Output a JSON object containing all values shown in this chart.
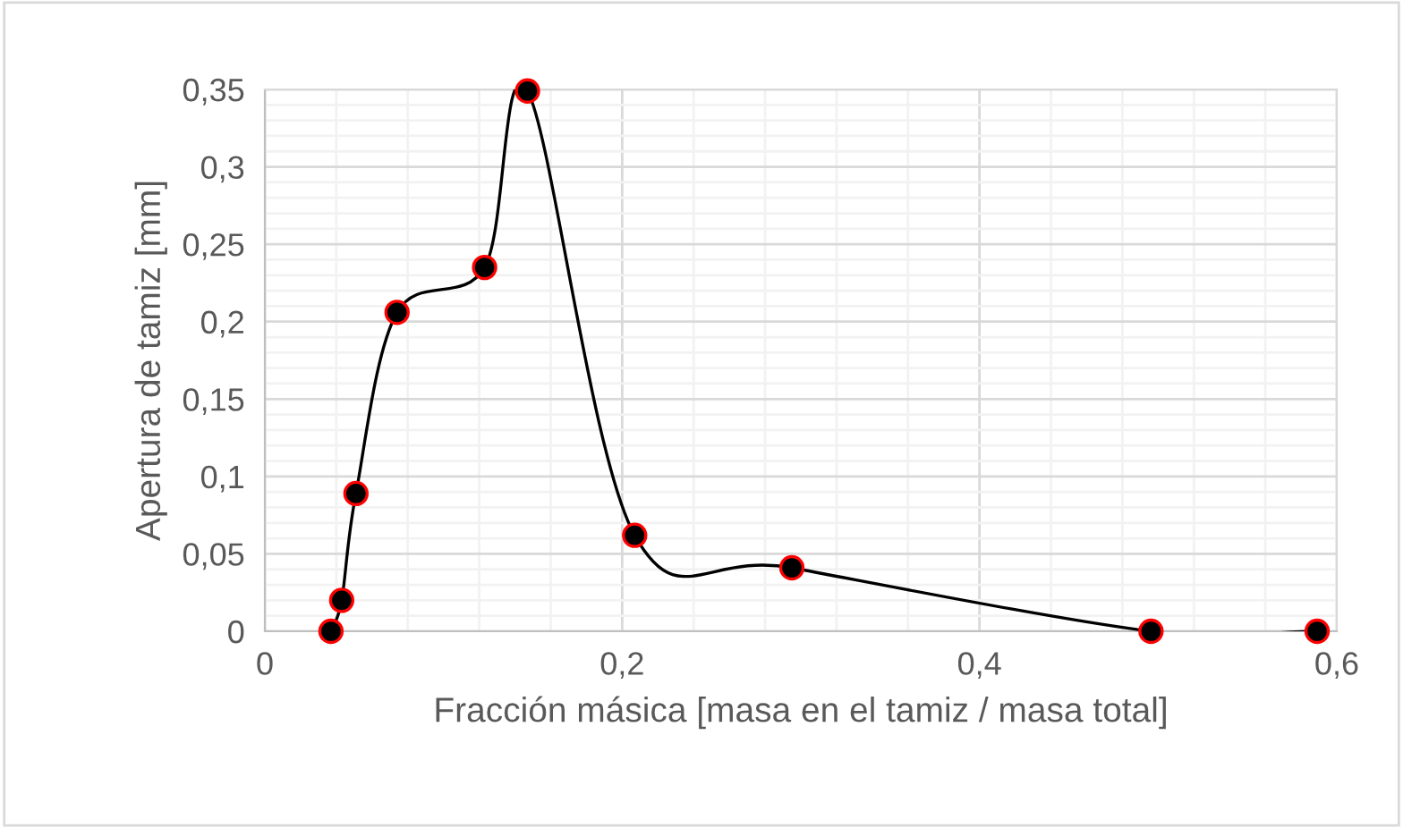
{
  "chart_data": {
    "type": "line",
    "xlabel": "Fracción másica [masa en el tamiz / masa total]",
    "ylabel": "Apertura de tamiz [mm]",
    "series": [
      {
        "color": "#000000",
        "x": [
          0.037,
          0.043,
          0.051,
          0.074,
          0.123,
          0.147,
          0.207,
          0.295,
          0.496,
          0.589
        ],
        "values": [
          0,
          0.02,
          0.089,
          0.206,
          0.235,
          0.349,
          0.062,
          0.041,
          0,
          0
        ]
      }
    ],
    "marker": "circle",
    "grid": true,
    "xlim": [
      0,
      0.6
    ],
    "ylim": [
      0,
      0.35
    ],
    "xticks": [
      0,
      {
        "value": 0.2,
        "label": "0,2"
      },
      {
        "value": 0.4,
        "label": "0,4"
      },
      {
        "value": 0.6,
        "label": "0,6"
      }
    ],
    "yticks": [
      0,
      {
        "value": 0.05,
        "label": "0,05"
      },
      {
        "value": 0.1,
        "label": "0,1"
      },
      {
        "value": 0.15,
        "label": "0,15"
      },
      {
        "value": 0.2,
        "label": "0,2"
      },
      {
        "value": 0.25,
        "label": "0,25"
      },
      {
        "value": 0.3,
        "label": "0,3"
      },
      {
        "value": 0.35,
        "label": "0,35"
      }
    ]
  }
}
